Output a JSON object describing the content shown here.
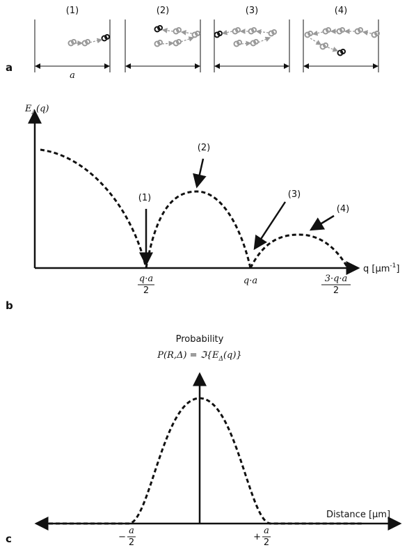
{
  "panel_a": {
    "label": "a",
    "steps": [
      "(1)",
      "(2)",
      "(3)",
      "(4)"
    ],
    "width_label": "a"
  },
  "panel_b": {
    "label": "b",
    "y_label": {
      "main": "E",
      "sub": "Δ",
      "arg": "(q)"
    },
    "x_label": {
      "main": "q [µm",
      "sup": "-1",
      "end": "]"
    },
    "annotations": [
      "(1)",
      "(2)",
      "(3)",
      "(4)"
    ],
    "ticks": [
      {
        "num": "q·a",
        "den": "2"
      },
      {
        "text": "q·a"
      },
      {
        "num": "3·q·a",
        "den": "2"
      }
    ]
  },
  "panel_c": {
    "label": "c",
    "title": "Probability",
    "formula": "P(R,Δ) = ℑ{E",
    "formula_sub": "Δ",
    "formula_end": "(q)}",
    "x_label": "Distance [µm]",
    "ticks": [
      {
        "sign": "−",
        "num": "a",
        "den": "2"
      },
      {
        "sign": "+",
        "num": "a",
        "den": "2"
      }
    ]
  }
}
